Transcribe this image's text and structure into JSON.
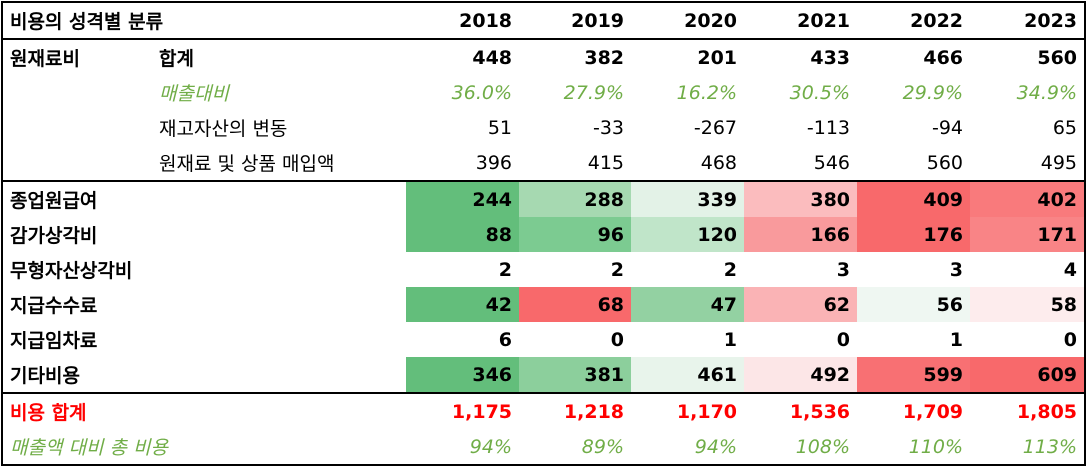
{
  "header": {
    "title": "비용의 성격별 분류",
    "years": [
      "2018",
      "2019",
      "2020",
      "2021",
      "2022",
      "2023"
    ]
  },
  "raw": {
    "label": "원재료비",
    "total_label": "합계",
    "total": [
      "448",
      "382",
      "201",
      "433",
      "466",
      "560"
    ],
    "ratio_label": "매출대비",
    "ratio": [
      "36.0%",
      "27.9%",
      "16.2%",
      "30.5%",
      "29.9%",
      "34.9%"
    ],
    "inv_label": "재고자산의 변동",
    "inv": [
      "51",
      "-33",
      "-267",
      "-113",
      "-94",
      "65"
    ],
    "purchase_label": "원재료 및 상품 매입액",
    "purchase": [
      "396",
      "415",
      "468",
      "546",
      "560",
      "495"
    ]
  },
  "rows": [
    {
      "label": "종업원급여",
      "values": [
        "244",
        "288",
        "339",
        "380",
        "409",
        "402"
      ],
      "colors": [
        "#63be7b",
        "#a6d9b1",
        "#e3f2e7",
        "#fbbcbe",
        "#f8696b",
        "#f97a7c"
      ]
    },
    {
      "label": "감가상각비",
      "values": [
        "88",
        "96",
        "120",
        "166",
        "176",
        "171"
      ],
      "colors": [
        "#63be7b",
        "#7ccb91",
        "#c0e5c9",
        "#f99a9c",
        "#f8696b",
        "#f98486"
      ]
    },
    {
      "label": "무형자산상각비",
      "values": [
        "2",
        "2",
        "2",
        "3",
        "3",
        "4"
      ],
      "colors": [
        "#ffffff",
        "#ffffff",
        "#ffffff",
        "#ffffff",
        "#ffffff",
        "#ffffff"
      ]
    },
    {
      "label": "지급수수료",
      "values": [
        "42",
        "68",
        "47",
        "62",
        "56",
        "58"
      ],
      "colors": [
        "#63be7b",
        "#f8696b",
        "#93d1a2",
        "#fab3b5",
        "#eff7f2",
        "#fdeced"
      ]
    },
    {
      "label": "지급임차료",
      "values": [
        "6",
        "0",
        "1",
        "0",
        "1",
        "0"
      ],
      "colors": [
        "#ffffff",
        "#ffffff",
        "#ffffff",
        "#ffffff",
        "#ffffff",
        "#ffffff"
      ]
    },
    {
      "label": "기타비용",
      "values": [
        "346",
        "381",
        "461",
        "492",
        "599",
        "609"
      ],
      "colors": [
        "#63be7b",
        "#8ccf9c",
        "#e8f4eb",
        "#fce6e7",
        "#f87073",
        "#f8696b"
      ]
    }
  ],
  "total": {
    "label": "비용 합계",
    "values": [
      "1,175",
      "1,218",
      "1,170",
      "1,536",
      "1,709",
      "1,805"
    ]
  },
  "ratio_total": {
    "label": "매출액 대비 총 비용",
    "values": [
      "94%",
      "89%",
      "94%",
      "108%",
      "110%",
      "113%"
    ]
  }
}
